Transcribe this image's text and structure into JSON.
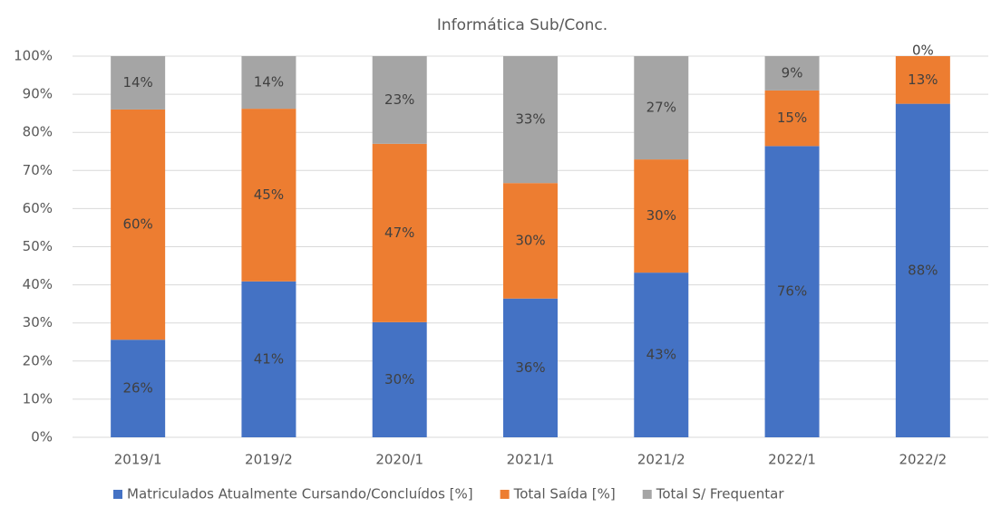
{
  "chart_data": {
    "type": "stacked_bar",
    "title": "Informática Sub/Conc.",
    "categories": [
      "2019/1",
      "2019/2",
      "2020/1",
      "2021/1",
      "2021/2",
      "2022/1",
      "2022/2"
    ],
    "series": [
      {
        "name": "Matriculados Atualmente Cursando/Concluídos [%]",
        "color": "#4472c4",
        "values": [
          25.6,
          40.9,
          30.2,
          36.4,
          43.2,
          76.4,
          87.5
        ],
        "value_labels": [
          "26%",
          "41%",
          "30%",
          "36%",
          "43%",
          "76%",
          "88%"
        ]
      },
      {
        "name": "Total Saída [%]",
        "color": "#ed7d31",
        "values": [
          60.4,
          45.3,
          46.8,
          30.3,
          29.7,
          14.6,
          12.5
        ],
        "value_labels": [
          "60%",
          "45%",
          "47%",
          "30%",
          "30%",
          "15%",
          "13%"
        ]
      },
      {
        "name": "Total S/ Frequentar",
        "color": "#a5a5a5",
        "values": [
          14.0,
          13.8,
          23.0,
          33.3,
          27.1,
          9.0,
          0
        ],
        "value_labels": [
          "14%",
          "14%",
          "23%",
          "33%",
          "27%",
          "9%",
          "0%"
        ]
      }
    ],
    "ylim": [
      0,
      100
    ],
    "yticks": [
      {
        "value": 0,
        "label": "0%"
      },
      {
        "value": 10,
        "label": "10%"
      },
      {
        "value": 20,
        "label": "20%"
      },
      {
        "value": 30,
        "label": "30%"
      },
      {
        "value": 40,
        "label": "40%"
      },
      {
        "value": 50,
        "label": "50%"
      },
      {
        "value": 60,
        "label": "60%"
      },
      {
        "value": 70,
        "label": "70%"
      },
      {
        "value": 80,
        "label": "80%"
      },
      {
        "value": 90,
        "label": "90%"
      },
      {
        "value": 100,
        "label": "100%"
      }
    ],
    "grid": true,
    "legend": "bottom"
  }
}
